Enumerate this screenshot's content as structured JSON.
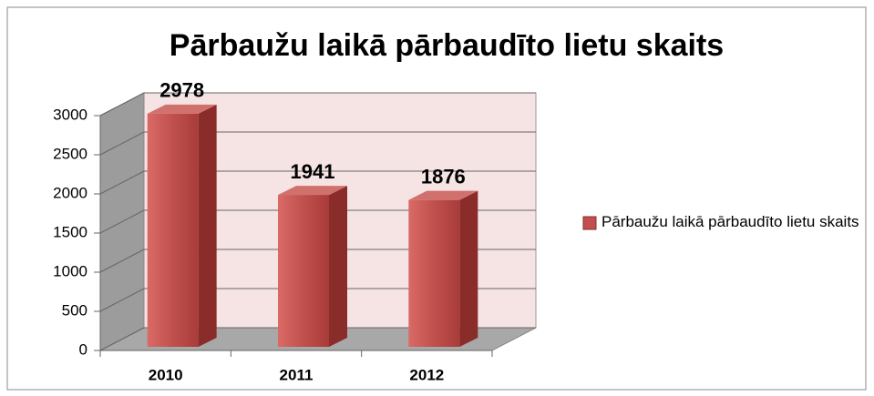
{
  "chart_data": {
    "type": "bar",
    "title": "Pārbaužu laikā pārbaudīto lietu skaits",
    "categories": [
      "2010",
      "2011",
      "2012"
    ],
    "series": [
      {
        "name": "Pārbaužu laikā pārbaudīto lietu skaits",
        "color": "#c0504d",
        "values": [
          2978,
          1941,
          1876
        ]
      }
    ],
    "ylim": [
      0,
      3000
    ],
    "yticks": [
      0,
      500,
      1000,
      1500,
      2000,
      2500,
      3000
    ],
    "grid": true,
    "legend": "right"
  }
}
